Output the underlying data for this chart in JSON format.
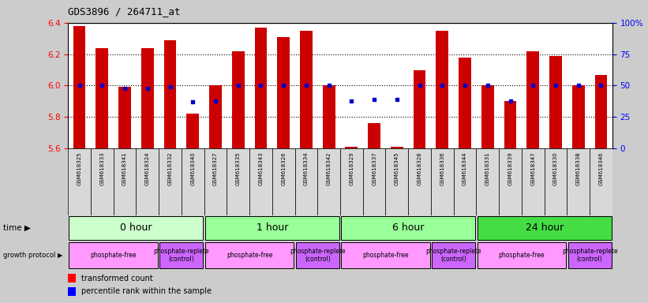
{
  "title": "GDS3896 / 264711_at",
  "samples": [
    "GSM618325",
    "GSM618333",
    "GSM618341",
    "GSM618324",
    "GSM618332",
    "GSM618340",
    "GSM618327",
    "GSM618335",
    "GSM618343",
    "GSM618326",
    "GSM618334",
    "GSM618342",
    "GSM618329",
    "GSM618337",
    "GSM618345",
    "GSM618328",
    "GSM618336",
    "GSM618344",
    "GSM618331",
    "GSM618339",
    "GSM618347",
    "GSM618330",
    "GSM618338",
    "GSM618346"
  ],
  "transformed_count": [
    6.38,
    6.24,
    5.99,
    6.24,
    6.29,
    5.82,
    6.0,
    6.22,
    6.37,
    6.31,
    6.35,
    6.0,
    5.61,
    5.76,
    5.61,
    6.1,
    6.35,
    6.18,
    6.0,
    5.9,
    6.22,
    6.19,
    6.0,
    6.07
  ],
  "percentile_rank": [
    50,
    50,
    48,
    48,
    49,
    37,
    38,
    50,
    50,
    50,
    50,
    50,
    38,
    39,
    39,
    50,
    50,
    50,
    50,
    38,
    50,
    50,
    50,
    50
  ],
  "ymin": 5.6,
  "ymax": 6.4,
  "yticks": [
    5.6,
    5.8,
    6.0,
    6.2,
    6.4
  ],
  "grid_yticks": [
    5.8,
    6.0,
    6.2
  ],
  "right_yticks": [
    0,
    25,
    50,
    75,
    100
  ],
  "right_yticklabels": [
    "0",
    "25",
    "50",
    "75",
    "100%"
  ],
  "time_groups": [
    {
      "label": "0 hour",
      "start": 0,
      "end": 6,
      "color": "#ccffcc"
    },
    {
      "label": "1 hour",
      "start": 6,
      "end": 12,
      "color": "#99ff99"
    },
    {
      "label": "6 hour",
      "start": 12,
      "end": 18,
      "color": "#99ff99"
    },
    {
      "label": "24 hour",
      "start": 18,
      "end": 24,
      "color": "#44dd44"
    }
  ],
  "growth_groups": [
    {
      "label": "phosphate-free",
      "start": 0,
      "end": 4,
      "color": "#ff99ff"
    },
    {
      "label": "phosphate-replete\n(control)",
      "start": 4,
      "end": 6,
      "color": "#cc66ff"
    },
    {
      "label": "phosphate-free",
      "start": 6,
      "end": 10,
      "color": "#ff99ff"
    },
    {
      "label": "phosphate-replete\n(control)",
      "start": 10,
      "end": 12,
      "color": "#cc66ff"
    },
    {
      "label": "phosphate-free",
      "start": 12,
      "end": 16,
      "color": "#ff99ff"
    },
    {
      "label": "phosphate-replete\n(control)",
      "start": 16,
      "end": 18,
      "color": "#cc66ff"
    },
    {
      "label": "phosphate-free",
      "start": 18,
      "end": 22,
      "color": "#ff99ff"
    },
    {
      "label": "phosphate-replete\n(control)",
      "start": 22,
      "end": 24,
      "color": "#cc66ff"
    }
  ],
  "bar_color": "#cc0000",
  "marker_color": "#0000cc",
  "bar_width": 0.55,
  "plot_bg": "#ffffff",
  "fig_bg": "#cccccc",
  "sample_band_bg": "#cccccc",
  "legend_red_label": "transformed count",
  "legend_blue_label": "percentile rank within the sample",
  "time_label": "time ▶",
  "protocol_label": "growth protocol ▶"
}
